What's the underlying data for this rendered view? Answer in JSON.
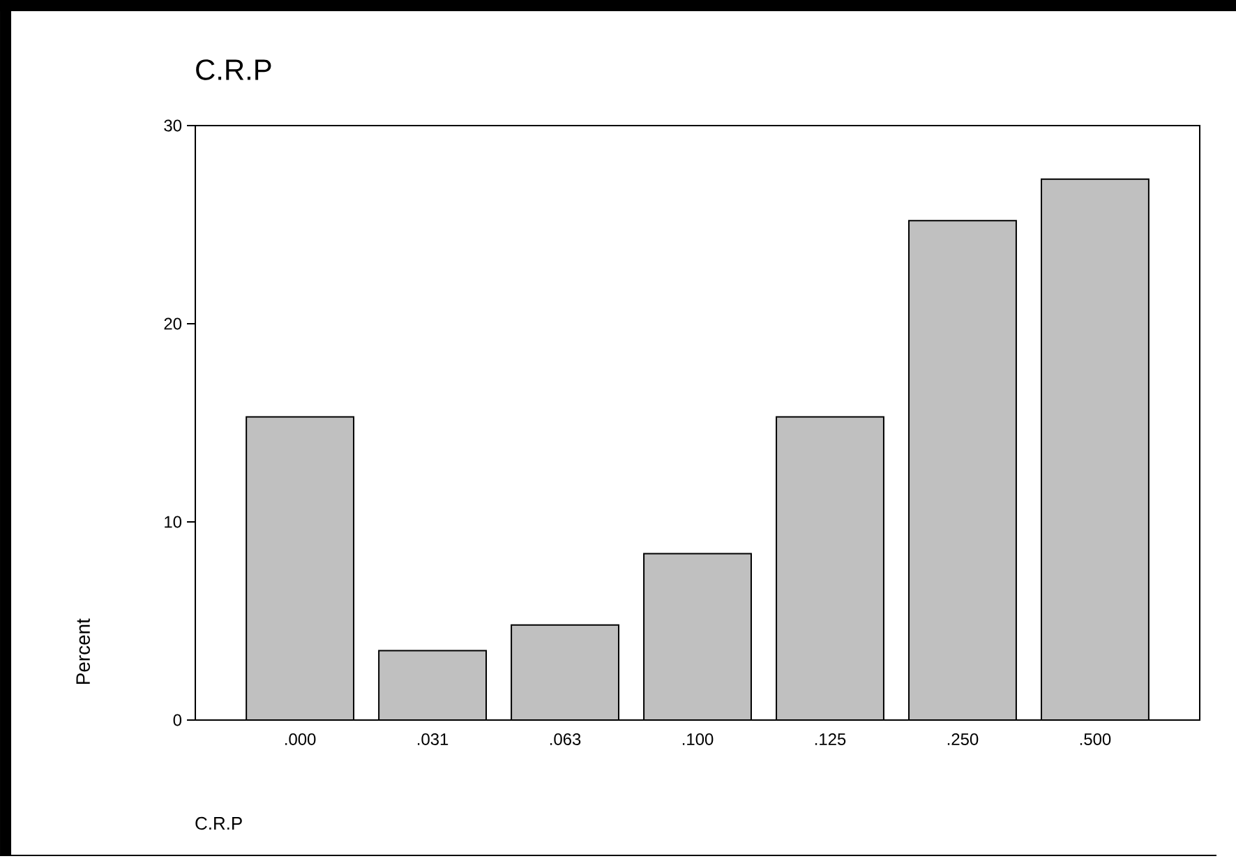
{
  "chart_data": {
    "type": "bar",
    "title": "C.R.P",
    "xlabel": "C.R.P",
    "ylabel": "Percent",
    "categories": [
      ".000",
      ".031",
      ".063",
      ".100",
      ".125",
      ".250",
      ".500"
    ],
    "values": [
      15.3,
      3.5,
      4.8,
      8.4,
      15.3,
      25.2,
      27.3
    ],
    "color": "#c0c0c0",
    "ylim": [
      0,
      30
    ],
    "yticks": [
      0,
      10,
      20,
      30
    ],
    "grid": false
  }
}
